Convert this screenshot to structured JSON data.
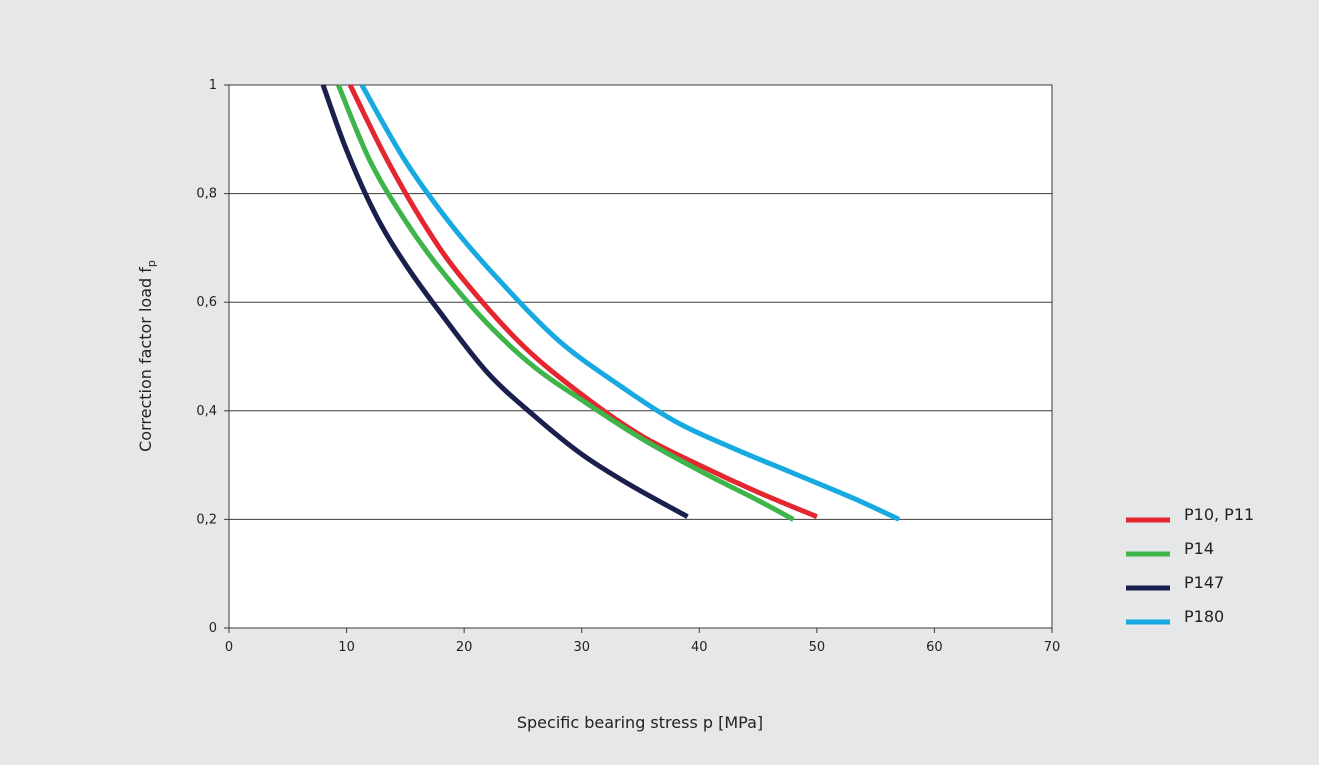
{
  "chart_data": {
    "type": "line",
    "xlabel": "Specific bearing stress p [MPa]",
    "ylabel": "Correction factor load f",
    "ylabel_subscript": "p",
    "xlim": [
      0,
      70
    ],
    "ylim": [
      0,
      1
    ],
    "x_ticks": [
      0,
      10,
      20,
      30,
      40,
      50,
      60,
      70
    ],
    "y_ticks": [
      0,
      0.2,
      0.4,
      0.6,
      0.8,
      1
    ],
    "x_tick_labels": [
      "0",
      "10",
      "20",
      "30",
      "40",
      "50",
      "60",
      "70"
    ],
    "y_tick_labels": [
      "0",
      "0,2",
      "0,4",
      "0,6",
      "0,8",
      "1"
    ],
    "grid": "horizontal",
    "legend_position": "right",
    "series": [
      {
        "name": "P10, P11",
        "color": "#e3262f",
        "points": [
          [
            10.3,
            1.0
          ],
          [
            13.5,
            0.86
          ],
          [
            17,
            0.73
          ],
          [
            20,
            0.64
          ],
          [
            25,
            0.52
          ],
          [
            30,
            0.43
          ],
          [
            35,
            0.355
          ],
          [
            40,
            0.3
          ],
          [
            45,
            0.25
          ],
          [
            50,
            0.205
          ]
        ]
      },
      {
        "name": "P14",
        "color": "#3db54a",
        "points": [
          [
            9.3,
            1.0
          ],
          [
            12,
            0.86
          ],
          [
            15,
            0.75
          ],
          [
            18,
            0.66
          ],
          [
            22,
            0.56
          ],
          [
            26,
            0.48
          ],
          [
            30,
            0.42
          ],
          [
            35,
            0.35
          ],
          [
            40,
            0.29
          ],
          [
            45,
            0.235
          ],
          [
            48,
            0.2
          ]
        ]
      },
      {
        "name": "P147",
        "color": "#1b1f4d",
        "points": [
          [
            8,
            1.0
          ],
          [
            10,
            0.88
          ],
          [
            12.5,
            0.76
          ],
          [
            15,
            0.67
          ],
          [
            18,
            0.58
          ],
          [
            22,
            0.47
          ],
          [
            26,
            0.39
          ],
          [
            30,
            0.32
          ],
          [
            34,
            0.265
          ],
          [
            39,
            0.205
          ]
        ]
      },
      {
        "name": "P180",
        "color": "#17a9e1",
        "points": [
          [
            11.3,
            1.0
          ],
          [
            15,
            0.86
          ],
          [
            19,
            0.74
          ],
          [
            23,
            0.64
          ],
          [
            28,
            0.53
          ],
          [
            33,
            0.45
          ],
          [
            38,
            0.38
          ],
          [
            43,
            0.33
          ],
          [
            48,
            0.285
          ],
          [
            53,
            0.24
          ],
          [
            57,
            0.2
          ]
        ]
      }
    ]
  }
}
